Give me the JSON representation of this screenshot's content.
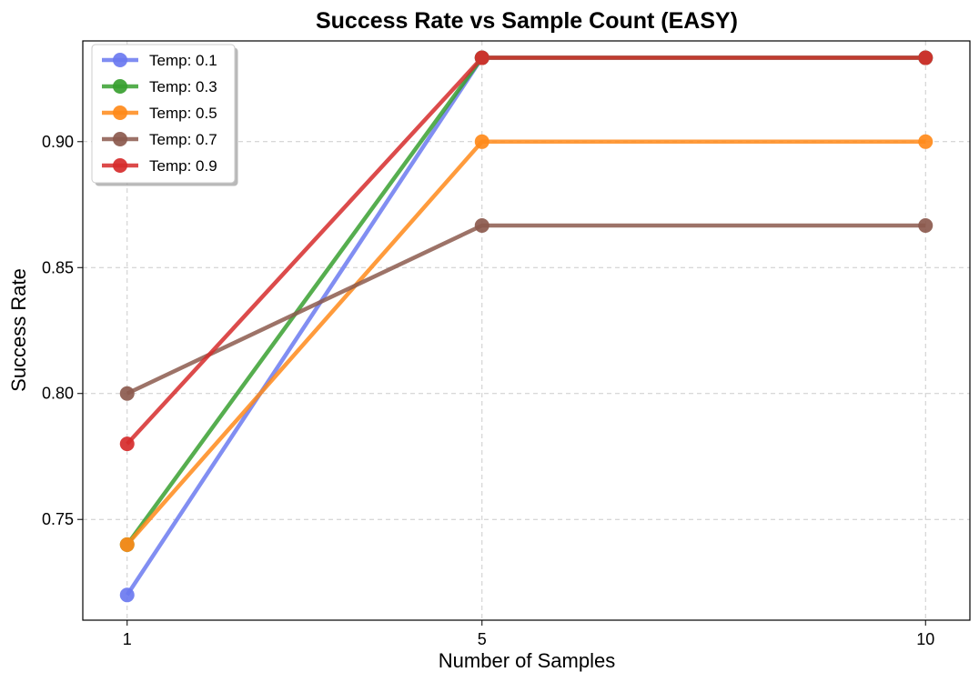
{
  "chart_data": {
    "type": "line",
    "title": "Success Rate vs Sample Count (EASY)",
    "xlabel": "Number of Samples",
    "ylabel": "Success Rate",
    "x": [
      1,
      5,
      10
    ],
    "xticks": [
      "1",
      "5",
      "10"
    ],
    "yticks": [
      "0.75",
      "0.80",
      "0.85",
      "0.90"
    ],
    "ylim": [
      0.71,
      0.94
    ],
    "grid": true,
    "legend_position": "top-left",
    "series": [
      {
        "name": "Temp: 0.1",
        "color": "#6b7af0",
        "values": [
          0.72,
          0.9333,
          0.9333
        ]
      },
      {
        "name": "Temp: 0.3",
        "color": "#38a030",
        "values": [
          0.74,
          0.9333,
          0.9333
        ]
      },
      {
        "name": "Temp: 0.5",
        "color": "#ff8a1a",
        "values": [
          0.74,
          0.9,
          0.9
        ]
      },
      {
        "name": "Temp: 0.7",
        "color": "#8c5a4e",
        "values": [
          0.8,
          0.8667,
          0.8667
        ]
      },
      {
        "name": "Temp: 0.9",
        "color": "#d62b2b",
        "values": [
          0.78,
          0.9333,
          0.9333
        ]
      }
    ]
  }
}
